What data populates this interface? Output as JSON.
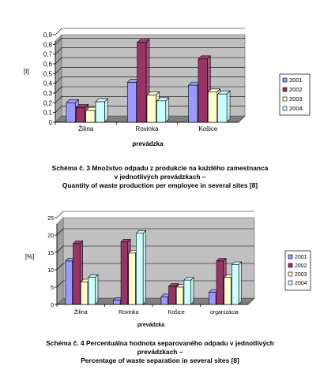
{
  "chart_data": [
    {
      "type": "bar",
      "ylabel": "[t]",
      "xlabel": "prevádzka",
      "categories": [
        "Žilina",
        "Rovinka",
        "Košice"
      ],
      "ylim": [
        0,
        0.9
      ],
      "yticks": [
        "0",
        "0,1",
        "0,2",
        "0,3",
        "0,4",
        "0,5",
        "0,6",
        "0,7",
        "0,8",
        "0,9"
      ],
      "grid": true,
      "legend_position": "right",
      "series": [
        {
          "name": "2001",
          "color": "#9999ff",
          "values": [
            0.2,
            0.41,
            0.38
          ]
        },
        {
          "name": "2002",
          "color": "#993366",
          "values": [
            0.15,
            0.82,
            0.65
          ]
        },
        {
          "name": "2003",
          "color": "#ffffcc",
          "values": [
            0.12,
            0.28,
            0.31
          ]
        },
        {
          "name": "2004",
          "color": "#ccffff",
          "values": [
            0.21,
            0.22,
            0.29
          ]
        }
      ],
      "caption": [
        "Schéma č. 3 Množstvo odpadu z produkcie na každého zamestnanca",
        "v jednotlivých prevádzkach –",
        "Quantity of waste production per employee in several sites  [8]"
      ]
    },
    {
      "type": "bar",
      "ylabel": "[%]",
      "xlabel": "prevádzka",
      "categories": [
        "Žilina",
        "Rovinka",
        "Košice",
        "organizácia"
      ],
      "ylim": [
        0,
        25
      ],
      "yticks": [
        "0",
        "5",
        "10",
        "15",
        "20",
        "25"
      ],
      "grid": true,
      "legend_position": "right",
      "series": [
        {
          "name": "2001",
          "color": "#9999ff",
          "values": [
            12.5,
            1.2,
            2.2,
            3.5
          ]
        },
        {
          "name": "2002",
          "color": "#993366",
          "values": [
            17.5,
            18,
            5.2,
            12.5
          ]
        },
        {
          "name": "2003",
          "color": "#ffffcc",
          "values": [
            6.5,
            14.8,
            5,
            7.8
          ]
        },
        {
          "name": "2004",
          "color": "#ccffff",
          "values": [
            7.8,
            20.5,
            7,
            11.5
          ]
        }
      ],
      "caption": [
        "Schéma č. 4 Percentuálna hodnota separovaného odpadu v jednotlivých",
        "prevádzkach –",
        "Percentage of waste separation in several sites [8]"
      ]
    }
  ]
}
